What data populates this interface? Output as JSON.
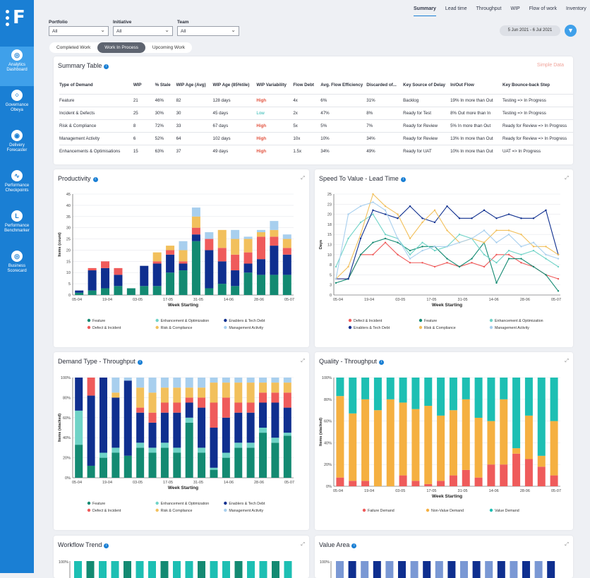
{
  "sidebar": {
    "items": [
      {
        "label1": "Analytics",
        "label2": "Dashboard",
        "active": true,
        "icon": "analytics-icon",
        "glyph": "◎"
      },
      {
        "label1": "Governance",
        "label2": "Obeya",
        "active": false,
        "icon": "governance-icon",
        "glyph": "⁘"
      },
      {
        "label1": "Delivery",
        "label2": "Forecaster",
        "active": false,
        "icon": "delivery-icon",
        "glyph": "◉"
      },
      {
        "label1": "Performance",
        "label2": "Checkpoints",
        "active": false,
        "icon": "checkpoints-icon",
        "glyph": "∿"
      },
      {
        "label1": "Performance",
        "label2": "Benchmarker",
        "active": false,
        "icon": "benchmarker-icon",
        "glyph": "L"
      },
      {
        "label1": "Business",
        "label2": "Scorecard",
        "active": false,
        "icon": "scorecard-icon",
        "glyph": "◎"
      }
    ]
  },
  "topnav": [
    "Summary",
    "Lead time",
    "Throughput",
    "WIP",
    "Flow of work",
    "Inventory"
  ],
  "filters": {
    "portfolio": {
      "label": "Portfolio",
      "value": "All"
    },
    "initiative": {
      "label": "Initiative",
      "value": "All"
    },
    "team": {
      "label": "Team",
      "value": "All"
    }
  },
  "daterange": "5 Jun 2021 - 6 Jul 2021",
  "tabs": [
    "Completed Work",
    "Work In Process",
    "Upcoming Work"
  ],
  "summary": {
    "title": "Summary Table",
    "simple_data": "Simple Data",
    "headers": [
      "Type of Demand",
      "WIP",
      "% Stale",
      "WIP Age (Avg)",
      "WIP Age (85%tile)",
      "WIP Variability",
      "Flow Debt",
      "Avg. Flow Efficiency",
      "Discarded of...",
      "Key Source of Delay",
      "In/Out Flow",
      "Key Bounce-back Step"
    ],
    "rows": [
      [
        "Feature",
        "21",
        "46%",
        "82",
        "128 days",
        "High",
        "4x",
        "6%",
        "31%",
        "Backlog",
        "19% In more than Out",
        "Testing => In Progress"
      ],
      [
        "Incident & Defects",
        "25",
        "30%",
        "30",
        "45 days",
        "Low",
        "2x",
        "47%",
        "8%",
        "Ready for Test",
        "8% Out more than In",
        "Testing => In Progress"
      ],
      [
        "Risk & Compliance",
        "8",
        "72%",
        "33",
        "67 days",
        "High",
        "5x",
        "5%",
        "7%",
        "Ready for Review",
        "5% In more than Out",
        "Ready for Review => In Progress"
      ],
      [
        "Management Activity",
        "6",
        "52%",
        "64",
        "102 days",
        "High",
        "10x",
        "10%",
        "34%",
        "Ready for Review",
        "13% In more than Out",
        "Ready for Review => In Progress"
      ],
      [
        "Enhancements & Optimisations",
        "15",
        "63%",
        "37",
        "49 days",
        "High",
        "1.5x",
        "34%",
        "49%",
        "Ready for UAT",
        "10% In more than Out",
        "UAT => In Progress"
      ]
    ]
  },
  "colors": {
    "feature": "#138a72",
    "defect": "#ef5b5b",
    "enhancement": "#6fd3c7",
    "risk": "#f2c05c",
    "enablers": "#0f2f8f",
    "management": "#a8cfee",
    "failure": "#ef5b5b",
    "nonvalue": "#f5b041",
    "value": "#1dbfb3"
  },
  "chart_data": [
    {
      "id": "productivity",
      "type": "bar",
      "title": "Productivity",
      "xlabel": "Week Starting",
      "ylabel": "Items (count)",
      "ylim": [
        0,
        45
      ],
      "yticks": [
        "0",
        "5",
        "10",
        "15",
        "20",
        "25",
        "30",
        "35",
        "40",
        "45"
      ],
      "xticks": [
        "05-04",
        "19-04",
        "03-05",
        "17-05",
        "31-05",
        "14-06",
        "28-06",
        "05-07"
      ],
      "series": [
        {
          "name": "Feature",
          "key": "feature",
          "values": [
            1,
            2,
            3,
            4,
            3,
            4,
            4,
            10,
            11,
            24,
            3,
            5,
            4,
            10,
            9,
            9,
            9
          ]
        },
        {
          "name": "Enhancement & Optimization",
          "key": "enhancement",
          "values": [
            0,
            0,
            0,
            0,
            0,
            0,
            0,
            0,
            0,
            0,
            0,
            0,
            0,
            0,
            0,
            0,
            0
          ]
        },
        {
          "name": "Enablers & Tech Debt",
          "key": "enablers",
          "values": [
            1,
            9,
            9,
            5,
            0,
            9,
            10,
            8,
            3,
            3,
            17,
            10,
            7,
            4,
            7,
            13,
            9
          ]
        },
        {
          "name": "Defect & Incident",
          "key": "defect",
          "values": [
            0,
            1,
            3,
            3,
            0,
            0,
            1,
            2,
            1,
            3,
            5,
            6,
            7,
            5,
            10,
            4,
            3
          ]
        },
        {
          "name": "Risk & Compliance",
          "key": "risk",
          "values": [
            0,
            0,
            0,
            0,
            0,
            0,
            4,
            2,
            5,
            5,
            0,
            8,
            7,
            6,
            2,
            3,
            4
          ]
        },
        {
          "name": "Management Activity",
          "key": "management",
          "values": [
            0,
            0,
            0,
            0,
            0,
            0,
            0,
            0,
            4,
            4,
            3,
            0,
            4,
            1,
            1,
            4,
            2
          ]
        }
      ],
      "legend": [
        "Feature",
        "Enhancement & Optimization",
        "Enablers & Tech Debt",
        "Defect & Incident",
        "Risk & Compliance",
        "Management Activity"
      ]
    },
    {
      "id": "leadtime",
      "type": "line",
      "title": "Speed To Value - Lead Time",
      "xlabel": "Week Starting",
      "ylabel": "Days",
      "ylim": [
        0,
        25
      ],
      "yticks": [
        "0",
        "3",
        "5",
        "8",
        "10",
        "13",
        "15",
        "18",
        "20",
        "23",
        "25"
      ],
      "xticks": [
        "05-04",
        "19-04",
        "03-05",
        "17-05",
        "31-05",
        "14-06",
        "28-06",
        "05-07"
      ],
      "series": [
        {
          "name": "Defect & Incident",
          "key": "defect",
          "values": [
            4,
            4,
            10,
            10,
            13,
            10,
            8,
            8,
            7,
            8,
            7,
            8,
            7,
            10,
            10,
            8,
            7,
            5,
            4
          ]
        },
        {
          "name": "Feature",
          "key": "feature",
          "values": [
            3,
            4,
            10,
            13,
            14,
            13,
            11,
            12,
            12,
            9,
            7,
            9,
            13,
            3,
            9,
            9,
            7,
            5,
            1
          ]
        },
        {
          "name": "Enhancement & Optimization",
          "key": "enhancement",
          "values": [
            7,
            14,
            18,
            20,
            15,
            14,
            10,
            13,
            11,
            12,
            15,
            14,
            10,
            8,
            11,
            10,
            11,
            9,
            7
          ]
        },
        {
          "name": "Enablers & Tech Debt",
          "key": "enablers",
          "values": [
            4,
            4,
            14,
            21,
            20,
            19,
            22,
            19,
            18,
            22,
            19,
            19,
            21,
            19,
            20,
            19,
            19,
            21,
            10
          ]
        },
        {
          "name": "Risk & Compliance",
          "key": "risk",
          "values": [
            4,
            7,
            15,
            25,
            22,
            20,
            14,
            18,
            21,
            16,
            13,
            14,
            13,
            16,
            16,
            15,
            12,
            12,
            10
          ]
        },
        {
          "name": "Management Activity",
          "key": "management",
          "values": [
            4,
            20,
            22,
            23,
            21,
            14,
            9,
            11,
            12,
            12,
            13,
            14,
            16,
            13,
            15,
            12,
            13,
            10,
            9
          ]
        }
      ],
      "legend": [
        "Defect & Incident",
        "Feature",
        "Enhancement & Optimization",
        "Enablers & Tech Debt",
        "Risk & Compliance",
        "Management Activity"
      ]
    },
    {
      "id": "demandtype",
      "type": "bar",
      "title": "Demand Type - Throughput",
      "xlabel": "Week Starting",
      "ylabel": "Items (stacked)",
      "ylim": [
        0,
        100
      ],
      "yticks": [
        "0%",
        "20%",
        "40%",
        "60%",
        "80%",
        "100%"
      ],
      "xticks": [
        "05-04",
        "19-04",
        "03-05",
        "17-05",
        "31-05",
        "14-06",
        "28-06",
        "05-07"
      ],
      "series": [
        {
          "name": "Feature",
          "key": "feature",
          "values": [
            33,
            12,
            20,
            25,
            22,
            30,
            25,
            30,
            25,
            55,
            25,
            8,
            20,
            30,
            30,
            45,
            35,
            42
          ]
        },
        {
          "name": "Enhancement & Optimization",
          "key": "enhancement",
          "values": [
            34,
            0,
            5,
            5,
            0,
            5,
            5,
            5,
            5,
            5,
            5,
            2,
            5,
            5,
            5,
            5,
            5,
            3
          ]
        },
        {
          "name": "Enablers & Tech Debt",
          "key": "enablers",
          "values": [
            33,
            70,
            75,
            50,
            75,
            30,
            25,
            30,
            35,
            15,
            40,
            40,
            35,
            30,
            30,
            25,
            35,
            25
          ]
        },
        {
          "name": "Defect & Incident",
          "key": "defect",
          "values": [
            0,
            18,
            0,
            0,
            0,
            5,
            10,
            10,
            10,
            5,
            10,
            25,
            20,
            10,
            10,
            10,
            10,
            15
          ]
        },
        {
          "name": "Risk & Compliance",
          "key": "risk",
          "values": [
            0,
            0,
            0,
            5,
            0,
            20,
            20,
            15,
            15,
            10,
            10,
            20,
            15,
            20,
            20,
            10,
            10,
            10
          ]
        },
        {
          "name": "Management Activity",
          "key": "management",
          "values": [
            0,
            0,
            0,
            15,
            3,
            10,
            15,
            10,
            10,
            10,
            10,
            5,
            5,
            5,
            5,
            5,
            5,
            5
          ]
        }
      ],
      "legend": [
        "Feature",
        "Enhancement & Optimization",
        "Enablers & Tech Debt",
        "Defect & Incident",
        "Risk & Compliance",
        "Management Activity"
      ]
    },
    {
      "id": "quality",
      "type": "bar",
      "title": "Quality - Throughput",
      "xlabel": "Week Starting",
      "ylabel": "Items (stacked)",
      "ylim": [
        0,
        100
      ],
      "yticks": [
        "0%",
        "20%",
        "40%",
        "60%",
        "80%",
        "100%"
      ],
      "xticks": [
        "05-04",
        "19-04",
        "03-05",
        "17-05",
        "31-05",
        "14-06",
        "28-06",
        "05-07"
      ],
      "series": [
        {
          "name": "Failure Demand",
          "key": "failure",
          "values": [
            8,
            5,
            5,
            0,
            0,
            10,
            5,
            2,
            5,
            10,
            15,
            8,
            20,
            20,
            30,
            25,
            18,
            10
          ]
        },
        {
          "name": "Non-Value Demand",
          "key": "nonvalue",
          "values": [
            75,
            62,
            75,
            70,
            80,
            67,
            66,
            72,
            60,
            60,
            65,
            55,
            40,
            60,
            5,
            40,
            10,
            50
          ]
        },
        {
          "name": "Value Demand",
          "key": "value",
          "values": [
            17,
            33,
            20,
            30,
            20,
            23,
            29,
            26,
            35,
            30,
            20,
            37,
            40,
            20,
            65,
            35,
            72,
            40
          ]
        }
      ],
      "legend": [
        "Failure Demand",
        "Non-Value Demand",
        "Value Demand"
      ]
    }
  ],
  "bottom": {
    "workflow_title": "Workflow Trend",
    "value_title": "Value Area",
    "tick100": "100%"
  }
}
